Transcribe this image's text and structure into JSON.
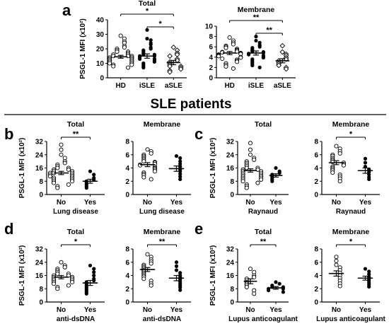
{
  "figure": {
    "section_title": "SLE patients",
    "letters": [
      "a",
      "b",
      "c",
      "d",
      "e"
    ]
  },
  "chart_data": [
    {
      "id": "a-total",
      "panel": "a",
      "type": "scatter",
      "title": "Total",
      "ylabel": "PSGL-1 MFI (x10²)",
      "ylim": [
        0,
        40
      ],
      "yticks": [
        0,
        10,
        20,
        30,
        40
      ],
      "categories": [
        "HD",
        "iSLE",
        "aSLE"
      ],
      "series": [
        {
          "marker": "open-circle",
          "mean": 14.5,
          "sem": 1,
          "values": [
            29,
            27,
            25,
            24,
            22,
            21,
            20,
            19,
            18,
            18,
            17,
            16,
            16,
            15,
            15,
            15,
            14,
            14,
            14,
            13,
            13,
            13,
            12,
            12,
            12,
            11,
            11,
            10,
            10,
            9,
            9,
            8,
            7
          ]
        },
        {
          "marker": "filled-circle",
          "mean": 15,
          "sem": 1.5,
          "values": [
            33,
            27,
            26,
            24,
            23,
            21,
            20,
            19,
            18,
            17,
            16,
            16,
            15,
            15,
            14,
            13,
            13,
            12,
            11,
            10,
            9,
            8,
            7
          ]
        },
        {
          "marker": "open-diamond",
          "mean": 10.5,
          "sem": 1.5,
          "values": [
            21,
            19,
            17,
            16,
            15,
            13,
            12,
            11,
            10,
            9,
            8,
            8,
            7,
            6,
            5,
            4
          ]
        }
      ],
      "significance": [
        {
          "from": 0,
          "to": 2,
          "label": "*"
        },
        {
          "from": 1,
          "to": 2,
          "label": "*"
        }
      ]
    },
    {
      "id": "a-membrane",
      "panel": "a",
      "type": "scatter",
      "title": "Membrane",
      "ylabel": "",
      "ylim": [
        0,
        10
      ],
      "yticks": [
        0,
        2,
        4,
        6,
        8,
        10
      ],
      "categories": [
        "HD",
        "iSLE",
        "aSLE"
      ],
      "series": [
        {
          "marker": "open-circle",
          "mean": 4.8,
          "sem": 0.3,
          "values": [
            7.8,
            7.2,
            6.8,
            6.5,
            6.2,
            6,
            5.8,
            5.6,
            5.4,
            5.3,
            5.1,
            5,
            4.9,
            4.8,
            4.7,
            4.6,
            4.5,
            4.4,
            4.3,
            4.2,
            4,
            3.9,
            3.7,
            3.5,
            3.3,
            3.1,
            2.8,
            2.5,
            2.2,
            1.8
          ]
        },
        {
          "marker": "filled-circle",
          "mean": 4.8,
          "sem": 0.4,
          "values": [
            8,
            7.2,
            6.8,
            6.3,
            6,
            5.8,
            5.5,
            5.3,
            5.1,
            5,
            4.8,
            4.7,
            4.5,
            4.3,
            4.1,
            3.9,
            3.6,
            3.3,
            3,
            2.7,
            2.4,
            2
          ]
        },
        {
          "marker": "open-diamond",
          "mean": 3.3,
          "sem": 0.4,
          "values": [
            6.2,
            5,
            4.6,
            4.3,
            3.9,
            3.6,
            3.3,
            3,
            2.7,
            2.4,
            2,
            1.7
          ]
        }
      ],
      "significance": [
        {
          "from": 0,
          "to": 2,
          "label": "**"
        },
        {
          "from": 1,
          "to": 2,
          "label": "**"
        }
      ]
    },
    {
      "id": "b-total",
      "panel": "b",
      "type": "scatter",
      "title": "Total",
      "ylabel": "PSGL-1 MFI (x10²)",
      "ylim": [
        0,
        32
      ],
      "yticks": [
        0,
        8,
        16,
        24,
        32
      ],
      "categories": [
        "No",
        "Yes"
      ],
      "xlabel": "Lung disease",
      "series": [
        {
          "marker": "open-circle",
          "mean": 13,
          "sem": 1,
          "values": [
            30,
            27,
            24,
            22,
            20,
            19,
            18,
            17,
            16,
            16,
            15,
            15,
            14,
            14,
            13,
            13,
            13,
            12,
            12,
            11,
            11,
            10,
            10,
            9,
            9,
            8,
            8,
            7,
            6,
            5,
            4
          ]
        },
        {
          "marker": "filled-circle",
          "mean": 8,
          "sem": 1.2,
          "values": [
            14,
            12,
            10,
            9,
            8,
            7,
            6,
            5,
            4
          ]
        }
      ],
      "significance": [
        {
          "from": 0,
          "to": 1,
          "label": "**"
        }
      ]
    },
    {
      "id": "b-membrane",
      "panel": "b",
      "type": "scatter",
      "title": "Membrane",
      "ylabel": "",
      "ylim": [
        0,
        8
      ],
      "yticks": [
        0,
        2,
        4,
        6,
        8
      ],
      "categories": [
        "No",
        "Yes"
      ],
      "xlabel": "Lung disease",
      "series": [
        {
          "marker": "open-circle",
          "mean": 4.5,
          "sem": 0.3,
          "values": [
            6.8,
            6.5,
            6.2,
            6,
            5.8,
            5.6,
            5.4,
            5.2,
            5,
            4.9,
            4.8,
            4.6,
            4.5,
            4.4,
            4.2,
            4,
            3.9,
            3.7,
            3.5,
            3.3,
            3.1,
            2.9,
            2.6,
            2.3
          ]
        },
        {
          "marker": "filled-circle",
          "mean": 3.9,
          "sem": 0.4,
          "values": [
            5.8,
            5.5,
            5,
            4.6,
            4.2,
            3.8,
            3.5,
            3.1,
            2.7,
            2.3
          ]
        }
      ],
      "significance": []
    },
    {
      "id": "c-total",
      "panel": "c",
      "type": "scatter",
      "title": "Total",
      "ylabel": "PSGL-1 MFI (x10²)",
      "ylim": [
        0,
        32
      ],
      "yticks": [
        0,
        8,
        16,
        24,
        32
      ],
      "categories": [
        "No",
        "Yes"
      ],
      "xlabel": "Raynaud",
      "series": [
        {
          "marker": "open-circle",
          "mean": 14.5,
          "sem": 1,
          "values": [
            31,
            27,
            24,
            22,
            21,
            20,
            19,
            18,
            17,
            16,
            16,
            15,
            15,
            14,
            14,
            13,
            13,
            12,
            12,
            11,
            11,
            10,
            10,
            9,
            9,
            8,
            7,
            6,
            5,
            4
          ]
        },
        {
          "marker": "filled-circle",
          "mean": 11.5,
          "sem": 1,
          "values": [
            16,
            14,
            13,
            12,
            11,
            10,
            9,
            8
          ]
        }
      ],
      "significance": []
    },
    {
      "id": "c-membrane",
      "panel": "c",
      "type": "scatter",
      "title": "Membrane",
      "ylabel": "",
      "ylim": [
        0,
        8
      ],
      "yticks": [
        0,
        2,
        4,
        6,
        8
      ],
      "categories": [
        "No",
        "Yes"
      ],
      "xlabel": "Raynaud",
      "series": [
        {
          "marker": "open-circle",
          "mean": 4.8,
          "sem": 0.3,
          "values": [
            7.3,
            6.9,
            6.5,
            6.2,
            6,
            5.8,
            5.5,
            5.3,
            5.1,
            4.9,
            4.8,
            4.6,
            4.4,
            4.2,
            4,
            3.8,
            3.6,
            3.3,
            3,
            2.7,
            2.4,
            2
          ]
        },
        {
          "marker": "filled-circle",
          "mean": 3.6,
          "sem": 0.4,
          "values": [
            5.4,
            4.8,
            4.2,
            3.8,
            3.4,
            3,
            2.6,
            2.3
          ]
        }
      ],
      "significance": [
        {
          "from": 0,
          "to": 1,
          "label": "*"
        }
      ]
    },
    {
      "id": "d-total",
      "panel": "d",
      "type": "scatter",
      "title": "Total",
      "ylabel": "PSGL-1 MFI (x10²)",
      "ylim": [
        0,
        32
      ],
      "yticks": [
        0,
        8,
        16,
        24,
        32
      ],
      "categories": [
        "No",
        "Yes"
      ],
      "xlabel": "anti-dsDNA",
      "series": [
        {
          "marker": "open-circle",
          "mean": 15,
          "sem": 1,
          "values": [
            24,
            22,
            21,
            20,
            19,
            18,
            17,
            17,
            16,
            16,
            15,
            15,
            14,
            14,
            13,
            13,
            12,
            12,
            11,
            10,
            9,
            8
          ]
        },
        {
          "marker": "filled-circle",
          "mean": 11.5,
          "sem": 1.5,
          "values": [
            22,
            20,
            18,
            16,
            14,
            13,
            12,
            11,
            10,
            9,
            8,
            7,
            6,
            5
          ]
        }
      ],
      "significance": [
        {
          "from": 0,
          "to": 1,
          "label": "*"
        }
      ]
    },
    {
      "id": "d-membrane",
      "panel": "d",
      "type": "scatter",
      "title": "Membrane",
      "ylabel": "",
      "ylim": [
        0,
        8
      ],
      "yticks": [
        0,
        2,
        4,
        6,
        8
      ],
      "categories": [
        "No",
        "Yes"
      ],
      "xlabel": "anti-dsDNA",
      "series": [
        {
          "marker": "open-circle",
          "mean": 4.9,
          "sem": 0.3,
          "values": [
            7.2,
            6.8,
            6.4,
            6.1,
            5.8,
            5.6,
            5.4,
            5.2,
            5,
            4.8,
            4.6,
            4.4,
            4.2,
            4,
            3.8,
            3.5,
            3.2,
            2.8,
            2.5
          ]
        },
        {
          "marker": "filled-circle",
          "mean": 3.6,
          "sem": 0.4,
          "values": [
            6,
            5.4,
            4.8,
            4.4,
            4,
            3.7,
            3.4,
            3.1,
            2.8,
            2.5,
            2.2,
            1.8
          ]
        }
      ],
      "significance": [
        {
          "from": 0,
          "to": 1,
          "label": "**"
        }
      ]
    },
    {
      "id": "e-total",
      "panel": "e",
      "type": "scatter",
      "title": "Total",
      "ylabel": "PSGL-1 MFI (x10²)",
      "ylim": [
        0,
        32
      ],
      "yticks": [
        0,
        8,
        16,
        24,
        32
      ],
      "categories": [
        "No",
        "Yes"
      ],
      "xlabel": "Lupus anticoagulant",
      "series": [
        {
          "marker": "open-circle",
          "mean": 12.5,
          "sem": 1.5,
          "values": [
            20,
            18,
            16,
            15,
            14,
            13,
            12,
            11,
            10,
            9,
            7,
            5
          ]
        },
        {
          "marker": "filled-circle",
          "mean": 8.5,
          "sem": 0.8,
          "values": [
            12,
            11,
            10,
            9,
            9,
            8,
            8,
            7,
            6
          ]
        }
      ],
      "significance": [
        {
          "from": 0,
          "to": 1,
          "label": "**"
        }
      ]
    },
    {
      "id": "e-membrane",
      "panel": "e",
      "type": "scatter",
      "title": "Membrane",
      "ylabel": "",
      "ylim": [
        0,
        8
      ],
      "yticks": [
        0,
        2,
        4,
        6,
        8
      ],
      "categories": [
        "No",
        "Yes"
      ],
      "xlabel": "Lupus anticoagulant",
      "series": [
        {
          "marker": "open-circle",
          "mean": 4.3,
          "sem": 0.4,
          "values": [
            6.8,
            6.2,
            5.6,
            5.2,
            4.8,
            4.4,
            4,
            3.6,
            3.2,
            2.8,
            2.4
          ]
        },
        {
          "marker": "filled-circle",
          "mean": 3.6,
          "sem": 0.3,
          "values": [
            5,
            4.6,
            4.2,
            3.8,
            3.5,
            3.2,
            2.9,
            2.6,
            2.3
          ]
        }
      ],
      "significance": [
        {
          "from": 0,
          "to": 1,
          "label": "*"
        }
      ]
    }
  ]
}
